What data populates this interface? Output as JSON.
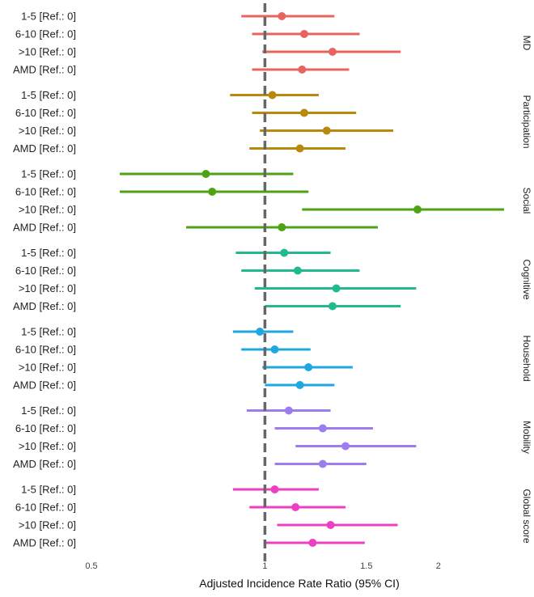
{
  "chart_data": {
    "type": "forest",
    "xlabel": "Adjusted Incidence Rate Ratio (95% CI)",
    "x_scale": "log",
    "xlim": [
      0.5,
      2.6
    ],
    "x_ticks": [
      {
        "value": 0.5,
        "label": "0.5"
      },
      {
        "value": 1,
        "label": "1"
      },
      {
        "value": 1.5,
        "label": "1.5"
      },
      {
        "value": 2,
        "label": "2"
      }
    ],
    "reference_line": 1,
    "reference_line_style": "dashed",
    "grid": false,
    "facets": [
      {
        "name": "MD",
        "color": "#e8645f",
        "rows": [
          {
            "label": "1-5 [Ref.: 0]",
            "estimate": 1.07,
            "lower": 0.91,
            "upper": 1.32
          },
          {
            "label": "6-10 [Ref.: 0]",
            "estimate": 1.17,
            "lower": 0.95,
            "upper": 1.46
          },
          {
            "label": ">10 [Ref.: 0]",
            "estimate": 1.31,
            "lower": 0.99,
            "upper": 1.72
          },
          {
            "label": "AMD [Ref.: 0]",
            "estimate": 1.16,
            "lower": 0.95,
            "upper": 1.4
          }
        ]
      },
      {
        "name": "Participation",
        "color": "#b8890c",
        "rows": [
          {
            "label": "1-5 [Ref.: 0]",
            "estimate": 1.03,
            "lower": 0.87,
            "upper": 1.24
          },
          {
            "label": "6-10 [Ref.: 0]",
            "estimate": 1.17,
            "lower": 0.95,
            "upper": 1.44
          },
          {
            "label": ">10 [Ref.: 0]",
            "estimate": 1.28,
            "lower": 0.98,
            "upper": 1.67
          },
          {
            "label": "AMD [Ref.: 0]",
            "estimate": 1.15,
            "lower": 0.94,
            "upper": 1.38
          }
        ]
      },
      {
        "name": "Social",
        "color": "#4ea314",
        "rows": [
          {
            "label": "1-5 [Ref.: 0]",
            "estimate": 0.79,
            "lower": 0.56,
            "upper": 1.12
          },
          {
            "label": "6-10 [Ref.: 0]",
            "estimate": 0.81,
            "lower": 0.56,
            "upper": 1.19
          },
          {
            "label": ">10 [Ref.: 0]",
            "estimate": 1.84,
            "lower": 1.16,
            "upper": 2.6
          },
          {
            "label": "AMD [Ref.: 0]",
            "estimate": 1.07,
            "lower": 0.73,
            "upper": 1.57
          }
        ]
      },
      {
        "name": "Cognitive",
        "color": "#22b98f",
        "rows": [
          {
            "label": "1-5 [Ref.: 0]",
            "estimate": 1.08,
            "lower": 0.89,
            "upper": 1.3
          },
          {
            "label": "6-10 [Ref.: 0]",
            "estimate": 1.14,
            "lower": 0.91,
            "upper": 1.46
          },
          {
            "label": ">10 [Ref.: 0]",
            "estimate": 1.33,
            "lower": 0.96,
            "upper": 1.83
          },
          {
            "label": "AMD [Ref.: 0]",
            "estimate": 1.31,
            "lower": 1.0,
            "upper": 1.72
          }
        ]
      },
      {
        "name": "Household",
        "color": "#1fa8df",
        "rows": [
          {
            "label": "1-5 [Ref.: 0]",
            "estimate": 0.98,
            "lower": 0.88,
            "upper": 1.12
          },
          {
            "label": "6-10 [Ref.: 0]",
            "estimate": 1.04,
            "lower": 0.91,
            "upper": 1.2
          },
          {
            "label": ">10 [Ref.: 0]",
            "estimate": 1.19,
            "lower": 0.99,
            "upper": 1.42
          },
          {
            "label": "AMD [Ref.: 0]",
            "estimate": 1.15,
            "lower": 1.0,
            "upper": 1.32
          }
        ]
      },
      {
        "name": "Mobility",
        "color": "#9d7cf0",
        "rows": [
          {
            "label": "1-5 [Ref.: 0]",
            "estimate": 1.1,
            "lower": 0.93,
            "upper": 1.3
          },
          {
            "label": "6-10 [Ref.: 0]",
            "estimate": 1.26,
            "lower": 1.04,
            "upper": 1.54
          },
          {
            "label": ">10 [Ref.: 0]",
            "estimate": 1.38,
            "lower": 1.13,
            "upper": 1.83
          },
          {
            "label": "AMD [Ref.: 0]",
            "estimate": 1.26,
            "lower": 1.04,
            "upper": 1.5
          }
        ]
      },
      {
        "name": "Global score",
        "color": "#ee3fc4",
        "rows": [
          {
            "label": "1-5 [Ref.: 0]",
            "estimate": 1.04,
            "lower": 0.88,
            "upper": 1.24
          },
          {
            "label": "6-10 [Ref.: 0]",
            "estimate": 1.13,
            "lower": 0.94,
            "upper": 1.38
          },
          {
            "label": ">10 [Ref.: 0]",
            "estimate": 1.3,
            "lower": 1.05,
            "upper": 1.7
          },
          {
            "label": "AMD [Ref.: 0]",
            "estimate": 1.21,
            "lower": 1.0,
            "upper": 1.49
          }
        ]
      }
    ]
  }
}
